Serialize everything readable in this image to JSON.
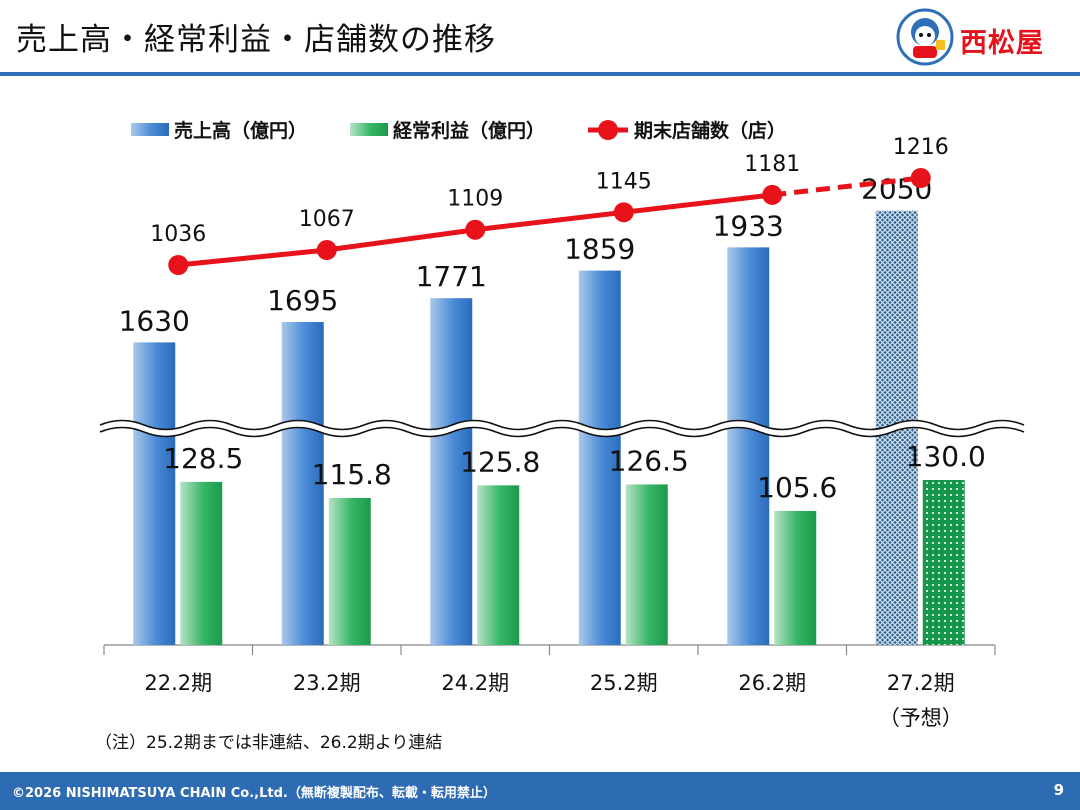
{
  "header": {
    "title": "売上高・経常利益・店舗数の推移",
    "logo_text": "西松屋"
  },
  "chart_data": {
    "type": "bar",
    "categories": [
      "22.2期",
      "23.2期",
      "24.2期",
      "25.2期",
      "26.2期",
      "27.2期"
    ],
    "category_sublabels": [
      "",
      "",
      "",
      "",
      "",
      "（予想）"
    ],
    "axis_break": true,
    "forecast_from_index": 5,
    "series": [
      {
        "name": "売上高（億円）",
        "type": "bar",
        "values": [
          1630,
          1695,
          1771,
          1859,
          1933,
          2050
        ],
        "labels": [
          "1630",
          "1695",
          "1771",
          "1859",
          "1933",
          "2050"
        ],
        "color": "#3b7fcc"
      },
      {
        "name": "経常利益（億円）",
        "type": "bar",
        "values": [
          128.5,
          115.8,
          125.8,
          126.5,
          105.6,
          130.0
        ],
        "labels": [
          "128.5",
          "115.8",
          "125.8",
          "126.5",
          "105.6",
          "130.0"
        ],
        "color": "#22a95a"
      },
      {
        "name": "期末店舗数（店）",
        "type": "line",
        "values": [
          1036,
          1067,
          1109,
          1145,
          1181,
          1216
        ],
        "labels": [
          "1036",
          "1067",
          "1109",
          "1145",
          "1181",
          "1216"
        ],
        "color": "#e8121a"
      }
    ],
    "legend_position": "top",
    "grid": false
  },
  "note": "（注）25.2期までは非連結、26.2期より連結",
  "footer": {
    "copyright": "©2026 NISHIMATSUYA CHAIN Co.,Ltd.（無断複製配布、転載・転用禁止）",
    "page_number": "9"
  }
}
